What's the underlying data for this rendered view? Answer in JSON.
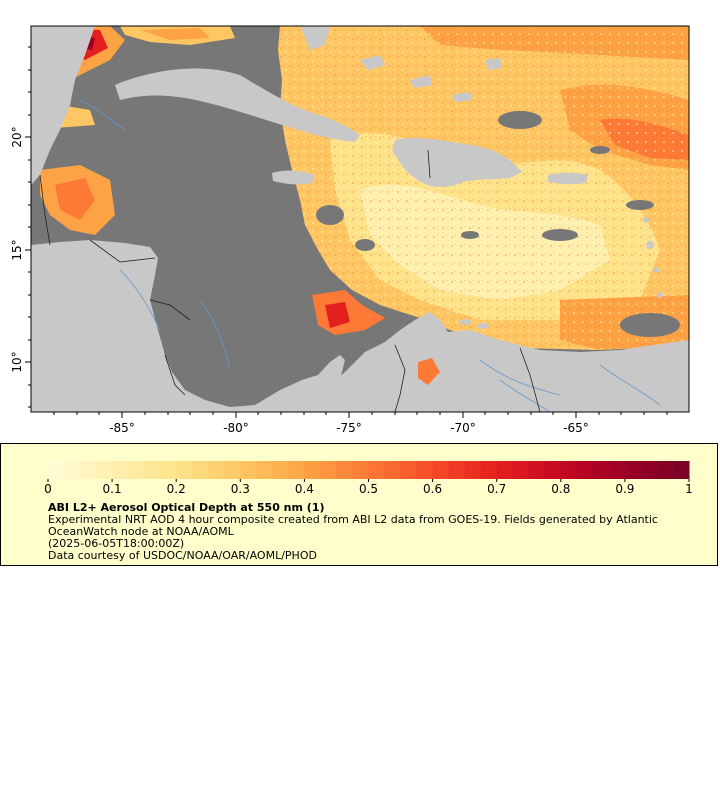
{
  "map": {
    "lat_labels": [
      "10°",
      "15°",
      "20°"
    ],
    "lon_labels": [
      "-85°",
      "-80°",
      "-75°",
      "-70°",
      "-65°"
    ],
    "colors": {
      "ocean_nodata": "#777777",
      "land": "#c8c8c8",
      "frame": "#000000",
      "rivers": "#6699cc",
      "borders": "#222222"
    }
  },
  "colorbar": {
    "ticks": [
      "0",
      "0.1",
      "0.2",
      "0.3",
      "0.4",
      "0.5",
      "0.6",
      "0.7",
      "0.8",
      "0.9",
      "1"
    ],
    "colors": [
      "#fffed8",
      "#fff0b0",
      "#fee38b",
      "#fec764",
      "#fda346",
      "#fc7a35",
      "#f74a29",
      "#e3201e",
      "#c50823",
      "#9c0026",
      "#780026"
    ]
  },
  "legend": {
    "title": "ABI L2+ Aerosol Optical Depth at 550 nm (1)",
    "line1": "Experimental NRT AOD 4 hour composite created from ABI L2 data from GOES-19. Fields generated by Atlantic",
    "line2": "OceanWatch node at NOAA/AOML",
    "line3": "(2025-06-05T18:00:00Z)",
    "line4": "Data courtesy of USDOC/NOAA/OAR/AOML/PHOD"
  }
}
